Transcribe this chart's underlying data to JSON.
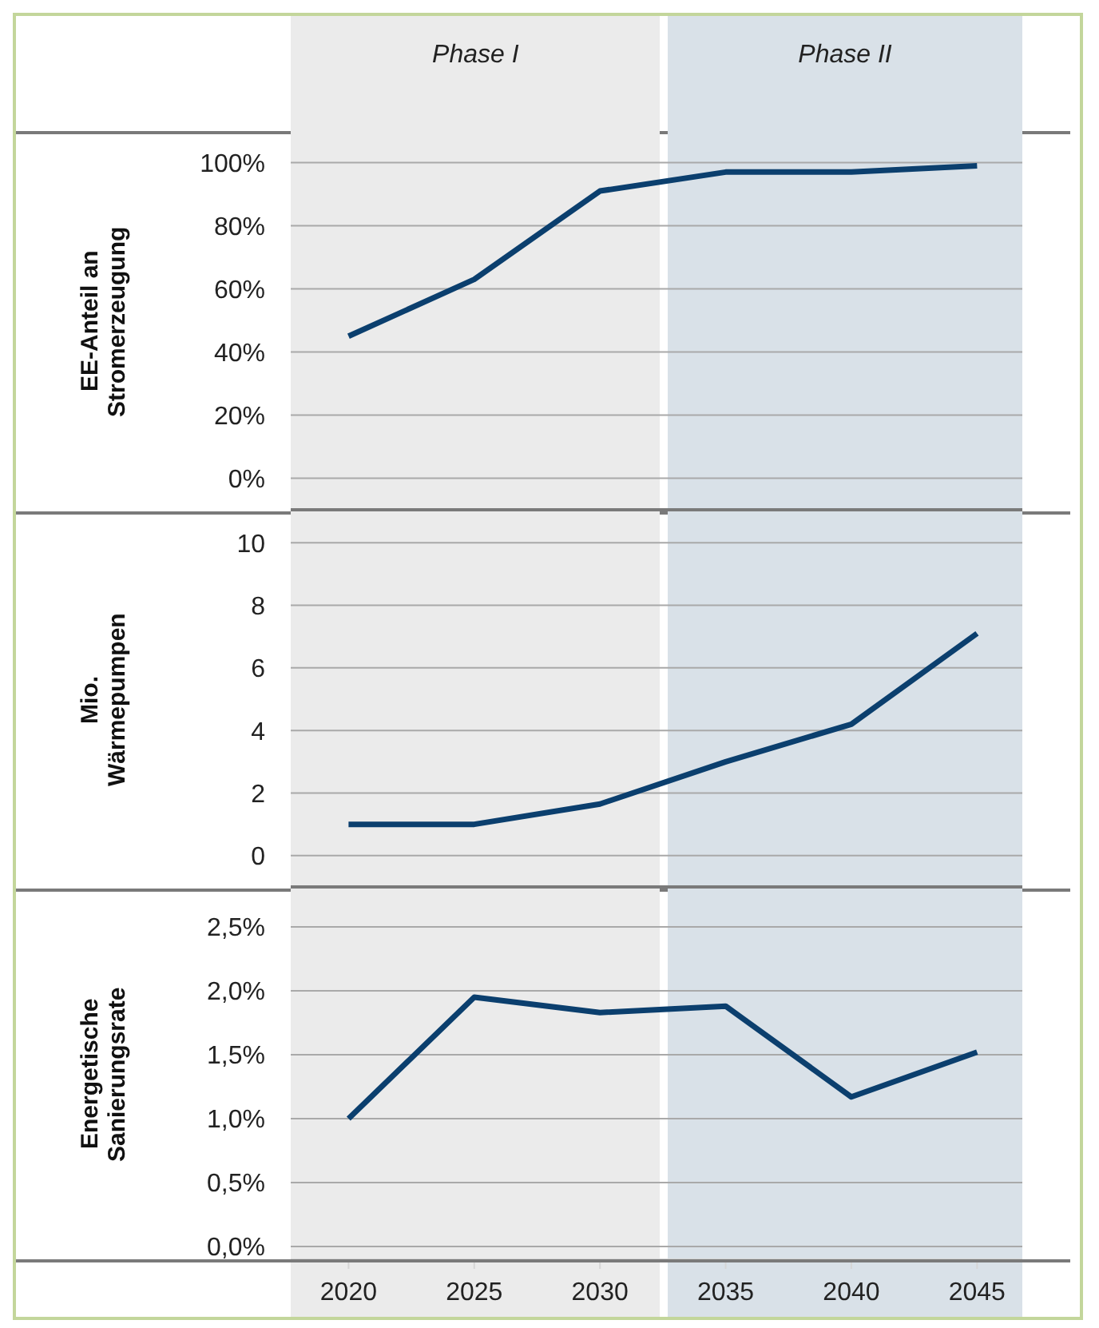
{
  "chart_data": [
    {
      "type": "line",
      "ylabel": "EE-Anteil an Stromerzeugung",
      "x": [
        2020,
        2025,
        2030,
        2035,
        2040,
        2045
      ],
      "series": [
        {
          "color": "#0b3f6e",
          "values": [
            45,
            63,
            91,
            97,
            97,
            99
          ]
        }
      ],
      "xlim": [
        2017.7,
        2046.8
      ],
      "xticks": [
        2020,
        2025,
        2030,
        2035,
        2040,
        2045
      ],
      "ylim": [
        -10,
        110
      ],
      "yticks": [
        {
          "value": 0,
          "label": "0%"
        },
        {
          "value": 20,
          "label": "20%"
        },
        {
          "value": 40,
          "label": "40%"
        },
        {
          "value": 60,
          "label": "60%"
        },
        {
          "value": 80,
          "label": "80%"
        },
        {
          "value": 100,
          "label": "100%"
        }
      ],
      "grid": "y",
      "tick_labels": "y",
      "bands": [
        {
          "axis": "x",
          "from": 2017.7,
          "to": 2032.4,
          "label": "Phase I",
          "color": "#ebebeb"
        },
        {
          "axis": "x",
          "from": 2032.7,
          "to": 2046.8,
          "label": "Phase II",
          "color": "#d9e1e8"
        }
      ]
    },
    {
      "type": "line",
      "ylabel": "Mio. Wärmepumpen",
      "x": [
        2020,
        2025,
        2030,
        2035,
        2040,
        2045
      ],
      "series": [
        {
          "color": "#0b3f6e",
          "values": [
            1,
            1,
            1.65,
            3,
            4.2,
            7.1
          ]
        }
      ],
      "xlim": [
        2017.7,
        2046.8
      ],
      "xticks": [
        2020,
        2025,
        2030,
        2035,
        2040,
        2045
      ],
      "ylim": [
        -1,
        11
      ],
      "yticks": [
        0,
        2,
        4,
        6,
        8,
        10
      ],
      "grid": "y",
      "tick_labels": "y",
      "bands": [
        {
          "axis": "x",
          "from": 2017.7,
          "to": 2032.4,
          "color": "#ebebeb"
        },
        {
          "axis": "x",
          "from": 2032.7,
          "to": 2046.8,
          "color": "#d9e1e8"
        }
      ]
    },
    {
      "type": "line",
      "ylabel": "Energetische Sanierungsrate",
      "x": [
        2020,
        2025,
        2030,
        2035,
        2040,
        2045
      ],
      "series": [
        {
          "color": "#0b3f6e",
          "values": [
            1.0,
            1.95,
            1.83,
            1.88,
            1.17,
            1.52
          ]
        }
      ],
      "xlim": [
        2017.7,
        2046.8
      ],
      "xticks": [
        2020,
        2025,
        2030,
        2035,
        2040,
        2045
      ],
      "ylim": [
        -0.1,
        2.8
      ],
      "yticks": [
        {
          "value": 0,
          "label": "0,0%"
        },
        {
          "value": 0.5,
          "label": "0,5%"
        },
        {
          "value": 1,
          "label": "1,0%"
        },
        {
          "value": 1.5,
          "label": "1,5%"
        },
        {
          "value": 2,
          "label": "2,0%"
        },
        {
          "value": 2.5,
          "label": "2,5%"
        }
      ],
      "grid": "y",
      "bands": [
        {
          "axis": "x",
          "from": 2017.7,
          "to": 2032.4,
          "color": "#ebebeb"
        },
        {
          "axis": "x",
          "from": 2032.7,
          "to": 2046.8,
          "color": "#d9e1e8"
        }
      ]
    }
  ]
}
